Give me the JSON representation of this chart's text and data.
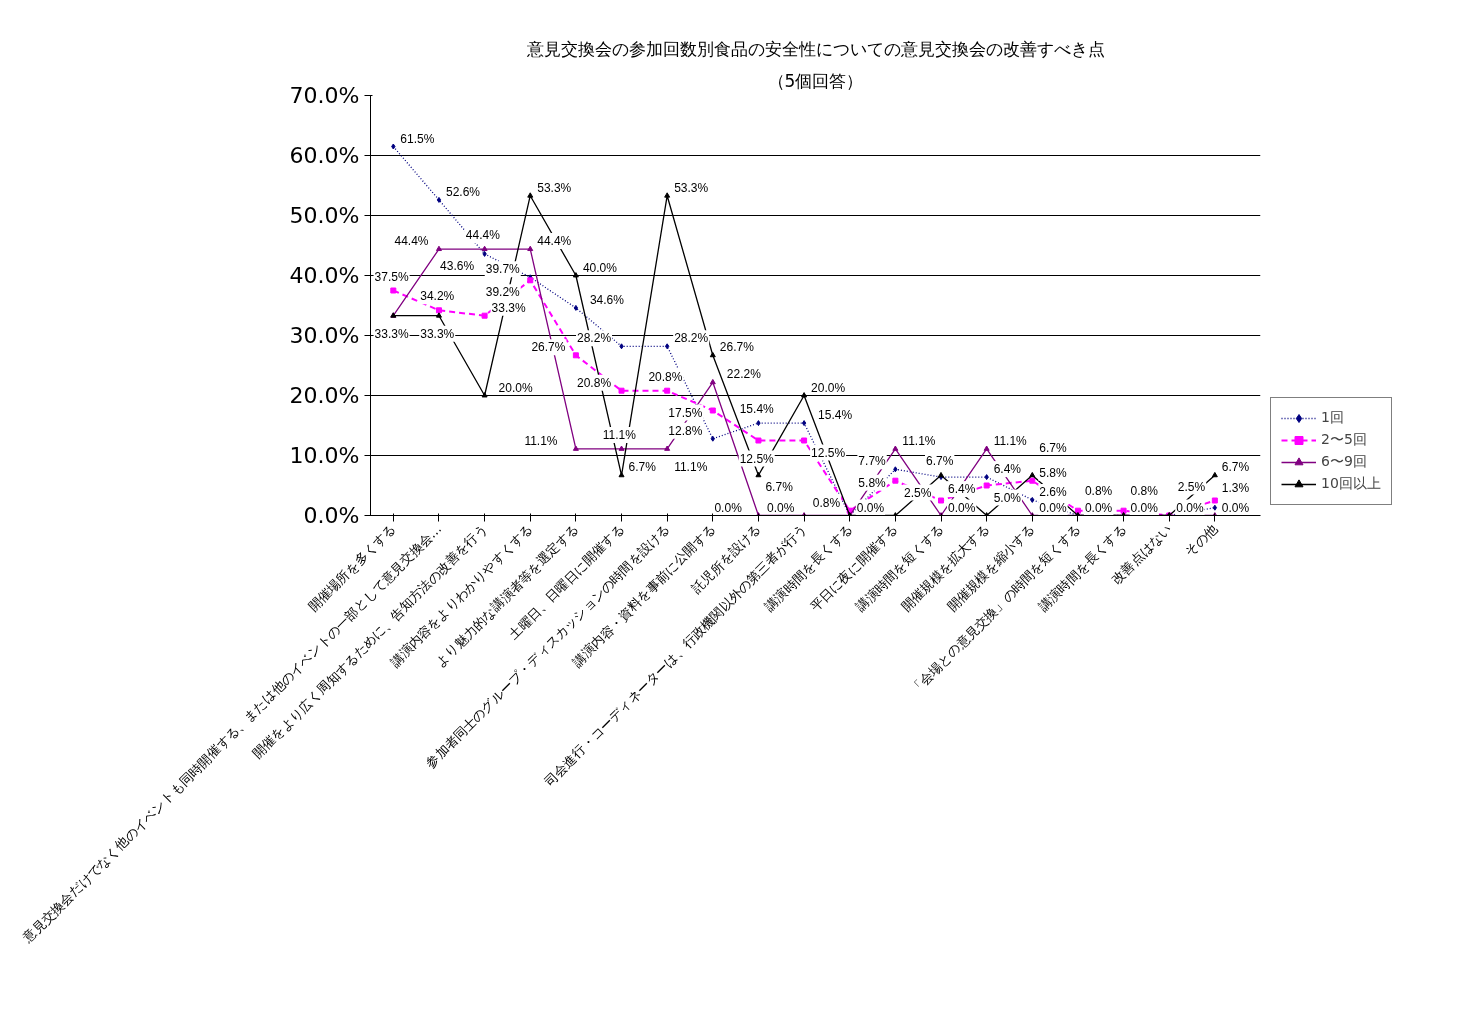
{
  "chart_data": {
    "type": "line",
    "title": "意見交換会の参加回数別食品の安全性についての意見交換会の改善すべき点",
    "subtitle": "（5個回答）",
    "categories": [
      "開催場所を多くする",
      "意見交換会だけでなく他のイベントも同時開催する、または他のイベントの一部として意見交換会…",
      "開催をより広く周知するために、告知方法の改善を行う",
      "講演内容をよりわかりやすくする",
      "より魅力的な講演者等を選定する",
      "土曜日、日曜日に開催する",
      "参加者同士のグループ・ディスカッションの時間を設ける",
      "講演内容・資料を事前に公開する",
      "託児所を設ける",
      "司会進行・コーディネーターは、行政機関以外の第三者が行う",
      "講演時間を長くする",
      "平日に夜に開催する",
      "講演時間を短くする",
      "開催規模を拡大する",
      "開催規模を縮小する",
      "「会場との意見交換」の時間を短くする",
      "講演時間を長くする",
      "改善点はない",
      "その他"
    ],
    "series": [
      {
        "name": "1回",
        "color": "#000080",
        "line_style": "dotted",
        "marker": "diamond",
        "values": [
          61.5,
          52.6,
          43.6,
          39.7,
          34.6,
          28.2,
          28.2,
          12.8,
          15.4,
          15.4,
          0.0,
          7.7,
          6.4,
          6.4,
          2.6,
          0.0,
          0.0,
          0.0,
          1.3
        ],
        "value_labels": [
          "61.5%",
          "52.6%",
          "43.6%",
          "39.7%",
          "34.6%",
          "28.2%",
          "28.2%",
          "12.8%",
          "15.4%",
          "15.4%",
          null,
          "7.7%",
          "6.4%",
          "6.4%",
          "2.6%",
          null,
          null,
          null,
          "1.3%"
        ]
      },
      {
        "name": "2〜5回",
        "color": "#ff00ff",
        "line_style": "dashed",
        "marker": "square",
        "values": [
          37.5,
          34.2,
          33.3,
          39.2,
          26.7,
          20.8,
          20.8,
          17.5,
          12.5,
          12.5,
          0.8,
          5.8,
          2.5,
          5.0,
          5.8,
          0.8,
          0.8,
          0.0,
          2.5
        ],
        "value_labels": [
          "37.5%",
          "34.2%",
          "33.3%",
          "39.2%",
          "26.7%",
          "20.8%",
          "20.8%",
          "17.5%",
          "12.5%",
          "12.5%",
          "0.8%",
          "5.8%",
          "2.5%",
          "5.0%",
          "5.8%",
          "0.8%",
          "0.8%",
          null,
          "2.5%"
        ]
      },
      {
        "name": "6〜9回",
        "color": "#800080",
        "line_style": "solid",
        "marker": "triangle",
        "values": [
          33.3,
          44.4,
          44.4,
          44.4,
          11.1,
          11.1,
          11.1,
          22.2,
          0.0,
          0.0,
          0.0,
          11.1,
          0.0,
          11.1,
          0.0,
          0.0,
          0.0,
          0.0,
          0.0
        ],
        "value_labels": [
          "33.3%",
          "44.4%",
          "44.4%",
          "44.4%",
          "11.1%",
          "11.1%",
          "11.1%",
          "22.2%",
          "0.0%",
          "0.0%",
          "0.0%",
          "11.1%",
          "0.0%",
          "11.1%",
          "0.0%",
          "0.0%",
          "0.0%",
          "0.0%",
          "0.0%"
        ]
      },
      {
        "name": "10回以上",
        "color": "#000000",
        "line_style": "solid",
        "marker": "triangle",
        "values": [
          33.3,
          33.3,
          20.0,
          53.3,
          40.0,
          6.7,
          53.3,
          26.7,
          6.7,
          20.0,
          0.0,
          0.0,
          6.7,
          0.0,
          6.7,
          0.0,
          0.0,
          0.0,
          6.7
        ],
        "value_labels": [
          null,
          "33.3%",
          "20.0%",
          "53.3%",
          "40.0%",
          "6.7%",
          "53.3%",
          "26.7%",
          "6.7%",
          "20.0%",
          null,
          null,
          "6.7%",
          null,
          "6.7%",
          null,
          null,
          null,
          "6.7%"
        ]
      }
    ],
    "ylim": [
      0,
      70
    ],
    "yticks": [
      {
        "value": 0,
        "label": "0.0%"
      },
      {
        "value": 10,
        "label": "10.0%"
      },
      {
        "value": 20,
        "label": "20.0%"
      },
      {
        "value": 30,
        "label": "30.0%"
      },
      {
        "value": 40,
        "label": "40.0%"
      },
      {
        "value": 50,
        "label": "50.0%"
      },
      {
        "value": 60,
        "label": "60.0%"
      },
      {
        "value": 70,
        "label": "70.0%"
      }
    ],
    "grid": "y",
    "legend": "bottom right"
  }
}
